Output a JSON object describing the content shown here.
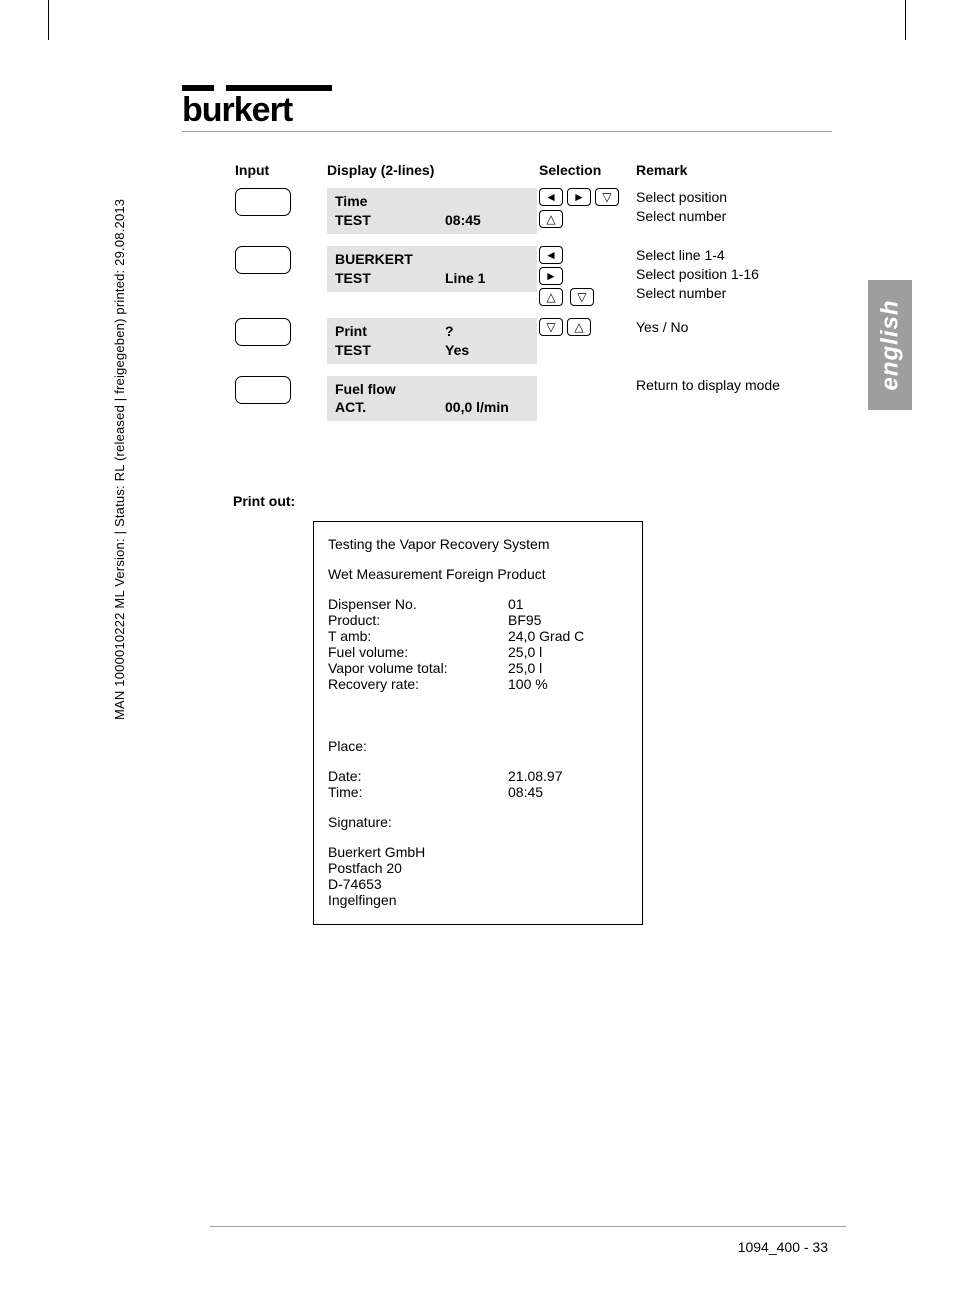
{
  "sidebar": "MAN 1000010222 ML  Version: |  Status: RL (released | freigegeben)  printed: 29.08.2013",
  "logo_text": "burkert",
  "lang_tab": "english",
  "headers": {
    "input": "Input",
    "display": "Display (2-lines)",
    "selection": "Selection",
    "remark": "Remark"
  },
  "rows": [
    {
      "d1": "Time",
      "d2": "TEST",
      "dr": "08:45",
      "icons": [
        "left",
        "right",
        "down",
        "up"
      ],
      "remark": "Select position\nSelect number"
    },
    {
      "d1": "BUERKERT",
      "d2": "TEST",
      "dr": "Line 1",
      "icons": [
        "left",
        "right",
        "up",
        "down"
      ],
      "icons_layout": "col2",
      "remark": "Select line 1-4\nSelect position 1-16\nSelect number"
    },
    {
      "d1": "Print",
      "d2": "TEST",
      "dr1": "?",
      "dr2": "Yes",
      "icons": [
        "down",
        "up"
      ],
      "remark": "Yes / No"
    },
    {
      "d1": "Fuel flow",
      "d2": "ACT.",
      "dr": "00,0   l/min",
      "icons": [],
      "remark": "Return to display mode"
    }
  ],
  "printout_label": "Print out:",
  "printout": {
    "title": "Testing the Vapor Recovery System",
    "subtitle": "Wet Measurement Foreign Product",
    "fields": [
      {
        "l": "Dispenser No.",
        "v": "01"
      },
      {
        "l": "Product:",
        "v": "BF95"
      },
      {
        "l": "T amb:",
        "v": "24,0 Grad C"
      },
      {
        "l": "Fuel volume:",
        "v": "25,0 l"
      },
      {
        "l": "Vapor volume total:",
        "v": "25,0 l"
      },
      {
        "l": "Recovery rate:",
        "v": "100 %"
      }
    ],
    "place_label": "Place:",
    "date": {
      "l": "Date:",
      "v": "21.08.97"
    },
    "time": {
      "l": "Time:",
      "v": "08:45"
    },
    "signature_label": "Signature:",
    "address": [
      "Buerkert GmbH",
      "Postfach 20",
      "D-74653",
      "Ingelfingen"
    ]
  },
  "footer": "1094_400  -  33"
}
